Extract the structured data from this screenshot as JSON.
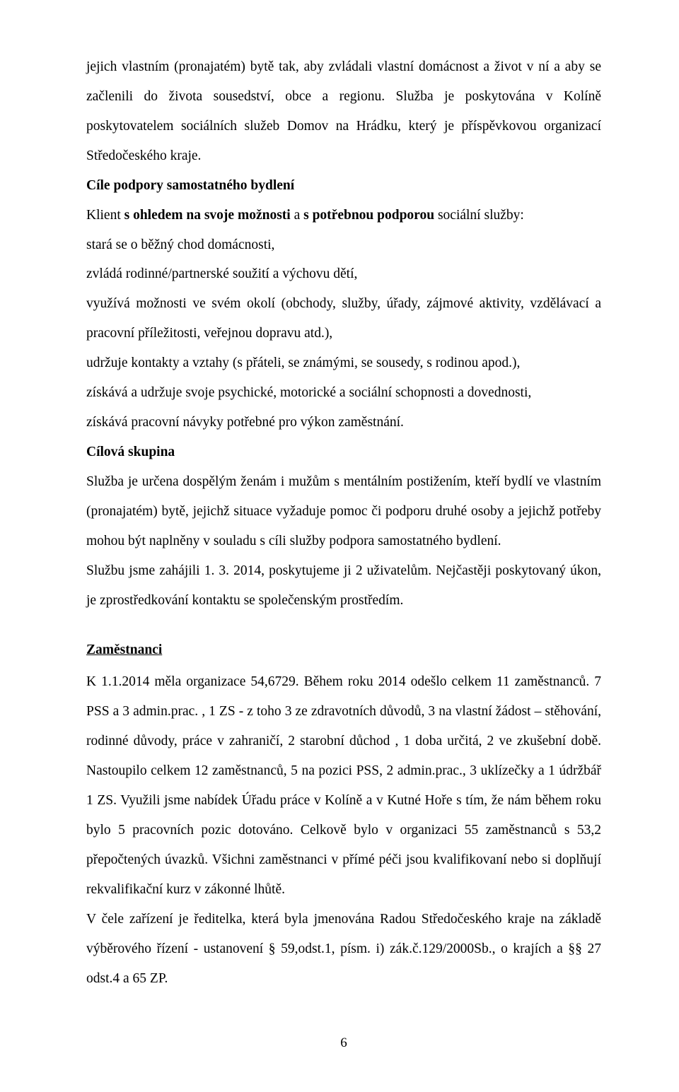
{
  "para_intro": "jejich vlastním (pronajatém) bytě tak, aby zvládali vlastní domácnost a život v ní a aby se začlenili do života sousedství, obce a regionu. Služba je poskytována v Kolíně poskytovatelem sociálních služeb Domov na Hrádku, který je příspěvkovou organizací Středočeského kraje.",
  "h_cile": "Cíle podpory samostatného bydlení",
  "cile_line1_a": "Klient ",
  "cile_line1_b": "s ohledem na svoje možnosti",
  "cile_line1_c": " a ",
  "cile_line1_d": "s potřebnou podporou",
  "cile_line1_e": " sociální služby:",
  "cile_item1": "stará se o běžný chod domácnosti,",
  "cile_item2": "zvládá rodinné/partnerské soužití a výchovu dětí,",
  "cile_item3": "využívá možnosti ve svém okolí (obchody, služby, úřady, zájmové aktivity, vzdělávací a pracovní příležitosti, veřejnou dopravu atd.),",
  "cile_item4": "udržuje kontakty a vztahy (s přáteli, se známými, se sousedy, s rodinou apod.),",
  "cile_item5": "získává a udržuje svoje psychické, motorické a sociální schopnosti a dovednosti,",
  "cile_item6": "získává pracovní návyky potřebné pro výkon zaměstnání.",
  "h_skupina": "Cílová skupina",
  "skupina_text": " Služba je určena dospělým ženám i mužům s mentálním postižením, kteří bydlí ve vlastním (pronajatém) bytě, jejichž situace vyžaduje pomoc či podporu druhé osoby a jejichž potřeby mohou být naplněny v souladu s cíli služby podpora samostatného bydlení.",
  "sluzba_start": "Službu jsme zahájili 1. 3. 2014, poskytujeme ji 2 uživatelům.  Nejčastěji poskytovaný úkon, je zprostředkování kontaktu se společenským prostředím.",
  "h_zam": "Zaměstnanci ",
  "zam_text": "K 1.1.2014 měla organizace 54,6729.  Během roku 2014 odešlo celkem 11 zaměstnanců. 7 PSS a 3 admin.prac. , 1 ZS - z toho 3 ze zdravotních důvodů, 3 na vlastní žádost – stěhování, rodinné důvody, práce v zahraničí, 2 starobní důchod , 1 doba určitá, 2 ve zkušební době.  Nastoupilo celkem 12 zaměstnanců, 5 na pozici PSS, 2 admin.prac., 3 uklízečky a 1 údržbář 1 ZS. Využili jsme nabídek Úřadu práce v Kolíně a v Kutné Hoře s tím, že nám během roku bylo 5 pracovních pozic dotováno. Celkově bylo v organizaci 55 zaměstnanců s 53,2 přepočtených úvazků. Všichni zaměstnanci v přímé péči jsou kvalifikovaní nebo si doplňují rekvalifikační kurz v zákonné lhůtě.",
  "zam_text2": "V čele zařízení je  ředitelka, která byla  jmenována Radou Středočeského kraje na základě výběrového řízení - ustanovení § 59,odst.1, písm. i) zák.č.129/2000Sb., o krajích a §§ 27 odst.4 a 65 ZP.",
  "page_number": "6"
}
